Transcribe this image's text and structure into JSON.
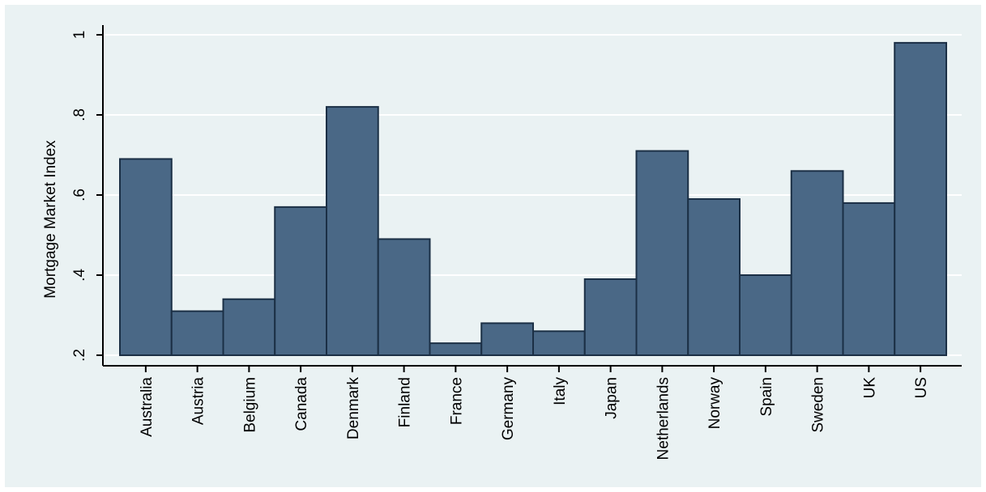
{
  "chart_data": {
    "type": "bar",
    "title": "",
    "xlabel": "",
    "ylabel": "Mortgage Market Index",
    "ylim": [
      0.2,
      1.0
    ],
    "yticks": [
      0.2,
      0.4,
      0.6,
      0.8,
      1.0
    ],
    "ytick_labels": [
      ".2",
      ".4",
      ".6",
      ".8",
      "1"
    ],
    "grid": true,
    "legend": "none",
    "categories": [
      "Australia",
      "Austria",
      "Belgium",
      "Canada",
      "Denmark",
      "Finland",
      "France",
      "Germany",
      "Italy",
      "Japan",
      "Netherlands",
      "Norway",
      "Spain",
      "Sweden",
      "UK",
      "US"
    ],
    "values": [
      0.69,
      0.31,
      0.34,
      0.57,
      0.82,
      0.49,
      0.23,
      0.28,
      0.26,
      0.39,
      0.71,
      0.59,
      0.4,
      0.66,
      0.58,
      0.98
    ],
    "colors": {
      "background": "#eaf2f3",
      "plot": "#eaf2f3",
      "grid": "#ffffff",
      "bar_fill": "#4a6886",
      "bar_stroke": "#1b2f45",
      "axis": "#000000"
    }
  }
}
